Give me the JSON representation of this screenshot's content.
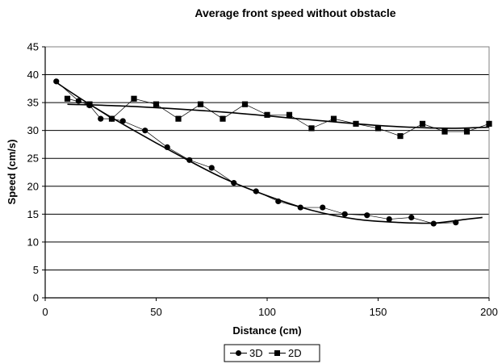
{
  "chart_data": {
    "type": "line",
    "title": "Average front speed without obstacle",
    "xlabel": "Distance (cm)",
    "ylabel": "Speed (cm/s)",
    "xlim": [
      0,
      200
    ],
    "ylim": [
      0,
      45
    ],
    "x_ticks": [
      "0",
      "50",
      "100",
      "150",
      "200"
    ],
    "y_ticks": [
      "0",
      "5",
      "10",
      "15",
      "20",
      "25",
      "30",
      "35",
      "40",
      "45"
    ],
    "grid": "horizontal",
    "legend_position": "bottom",
    "series": [
      {
        "name": "3D",
        "marker": "circle",
        "points": [
          [
            5,
            38.8
          ],
          [
            15,
            35.3
          ],
          [
            20,
            34.5
          ],
          [
            25,
            32.1
          ],
          [
            30,
            32.1
          ],
          [
            35,
            31.7
          ],
          [
            45,
            30.0
          ],
          [
            55,
            27.0
          ],
          [
            65,
            24.7
          ],
          [
            75,
            23.3
          ],
          [
            85,
            20.6
          ],
          [
            95,
            19.1
          ],
          [
            105,
            17.3
          ],
          [
            115,
            16.2
          ],
          [
            125,
            16.2
          ],
          [
            135,
            15.0
          ],
          [
            145,
            14.8
          ],
          [
            155,
            14.1
          ],
          [
            165,
            14.4
          ],
          [
            175,
            13.3
          ],
          [
            185,
            13.5
          ]
        ]
      },
      {
        "name": "2D",
        "marker": "square",
        "points": [
          [
            10,
            35.7
          ],
          [
            20,
            34.7
          ],
          [
            30,
            32.1
          ],
          [
            40,
            35.7
          ],
          [
            50,
            34.7
          ],
          [
            60,
            32.1
          ],
          [
            70,
            34.7
          ],
          [
            80,
            32.1
          ],
          [
            90,
            34.7
          ],
          [
            100,
            32.8
          ],
          [
            110,
            32.8
          ],
          [
            120,
            30.4
          ],
          [
            130,
            32.1
          ],
          [
            140,
            31.2
          ],
          [
            150,
            30.4
          ],
          [
            160,
            29.0
          ],
          [
            170,
            31.2
          ],
          [
            180,
            29.8
          ],
          [
            190,
            29.8
          ],
          [
            200,
            31.2
          ]
        ]
      }
    ],
    "trendlines": [
      {
        "series": "3D",
        "type": "polynomial",
        "points": [
          [
            5,
            38.6
          ],
          [
            20,
            34.7
          ],
          [
            40,
            30.0
          ],
          [
            60,
            25.6
          ],
          [
            80,
            21.5
          ],
          [
            100,
            18.3
          ],
          [
            120,
            15.7
          ],
          [
            140,
            14.1
          ],
          [
            160,
            13.5
          ],
          [
            175,
            13.4
          ],
          [
            190,
            14.1
          ],
          [
            197,
            14.4
          ]
        ]
      },
      {
        "series": "2D",
        "type": "polynomial",
        "points": [
          [
            10,
            34.7
          ],
          [
            40,
            34.3
          ],
          [
            80,
            33.3
          ],
          [
            120,
            31.9
          ],
          [
            150,
            30.9
          ],
          [
            170,
            30.5
          ],
          [
            185,
            30.4
          ],
          [
            200,
            30.6
          ]
        ]
      }
    ]
  }
}
